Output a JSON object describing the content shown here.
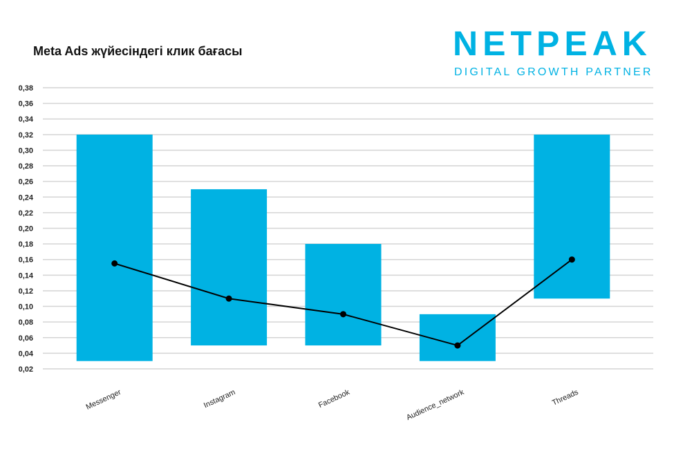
{
  "title": "Meta Ads жүйесіндегі клик бағасы",
  "logo": {
    "name": "NETPEAK",
    "tagline": "DIGITAL GROWTH PARTNER",
    "color": "#00b2e3"
  },
  "chart_data": {
    "type": "bar",
    "subtype": "floating range bars with line overlay",
    "title": "Meta Ads жүйесіндегі клик бағасы",
    "categories": [
      "Messenger",
      "Instagram",
      "Facebook",
      "Audience_network",
      "Threads"
    ],
    "series": [
      {
        "type": "range-bar",
        "low": [
          0.03,
          0.05,
          0.05,
          0.03,
          0.11
        ],
        "high": [
          0.32,
          0.25,
          0.18,
          0.09,
          0.32
        ],
        "color": "#00b2e3"
      },
      {
        "type": "line",
        "values": [
          0.155,
          0.11,
          0.09,
          0.05,
          0.16
        ],
        "color": "#000000"
      }
    ],
    "yticks": [
      "0,02",
      "0,04",
      "0,06",
      "0,08",
      "0,10",
      "0,12",
      "0,14",
      "0,16",
      "0,18",
      "0,20",
      "0,22",
      "0,24",
      "0,26",
      "0,28",
      "0,30",
      "0,32",
      "0,34",
      "0,36",
      "0,38"
    ],
    "ylim": [
      0.02,
      0.38
    ],
    "grid": true,
    "legend": "none"
  }
}
